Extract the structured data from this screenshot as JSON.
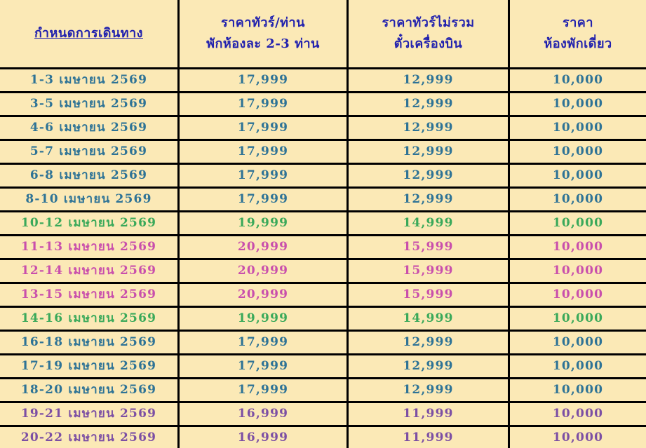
{
  "chart_data": {
    "type": "table",
    "headers": {
      "schedule": "กำหนดการเดินทาง",
      "price_per_person_line1": "ราคาทัวร์/ท่าน",
      "price_per_person_line2": "พักห้องละ 2-3 ท่าน",
      "price_no_flight_line1": "ราคาทัวร์ไม่รวม",
      "price_no_flight_line2": "ตั๋วเครื่องบิน",
      "single_room_line1": "ราคา",
      "single_room_line2": "ห้องพักเดี่ยว"
    },
    "rows": [
      {
        "date": "1-3 เมษายน 2569",
        "price_per_person": "17,999",
        "price_no_flight": "12,999",
        "single_room": "10,000",
        "color": "blue"
      },
      {
        "date": "3-5 เมษายน 2569",
        "price_per_person": "17,999",
        "price_no_flight": "12,999",
        "single_room": "10,000",
        "color": "blue"
      },
      {
        "date": "4-6 เมษายน 2569",
        "price_per_person": "17,999",
        "price_no_flight": "12,999",
        "single_room": "10,000",
        "color": "blue"
      },
      {
        "date": "5-7 เมษายน 2569",
        "price_per_person": "17,999",
        "price_no_flight": "12,999",
        "single_room": "10,000",
        "color": "blue"
      },
      {
        "date": "6-8 เมษายน 2569",
        "price_per_person": "17,999",
        "price_no_flight": "12,999",
        "single_room": "10,000",
        "color": "blue"
      },
      {
        "date": "8-10 เมษายน 2569",
        "price_per_person": "17,999",
        "price_no_flight": "12,999",
        "single_room": "10,000",
        "color": "blue"
      },
      {
        "date": "10-12 เมษายน 2569",
        "price_per_person": "19,999",
        "price_no_flight": "14,999",
        "single_room": "10,000",
        "color": "green"
      },
      {
        "date": "11-13 เมษายน 2569",
        "price_per_person": "20,999",
        "price_no_flight": "15,999",
        "single_room": "10,000",
        "color": "magenta"
      },
      {
        "date": "12-14 เมษายน 2569",
        "price_per_person": "20,999",
        "price_no_flight": "15,999",
        "single_room": "10,000",
        "color": "magenta"
      },
      {
        "date": "13-15 เมษายน 2569",
        "price_per_person": "20,999",
        "price_no_flight": "15,999",
        "single_room": "10,000",
        "color": "magenta"
      },
      {
        "date": "14-16 เมษายน 2569",
        "price_per_person": "19,999",
        "price_no_flight": "14,999",
        "single_room": "10,000",
        "color": "green"
      },
      {
        "date": "16-18 เมษายน 2569",
        "price_per_person": "17,999",
        "price_no_flight": "12,999",
        "single_room": "10,000",
        "color": "blue"
      },
      {
        "date": "17-19 เมษายน 2569",
        "price_per_person": "17,999",
        "price_no_flight": "12,999",
        "single_room": "10,000",
        "color": "blue"
      },
      {
        "date": "18-20 เมษายน 2569",
        "price_per_person": "17,999",
        "price_no_flight": "12,999",
        "single_room": "10,000",
        "color": "blue"
      },
      {
        "date": "19-21 เมษายน 2569",
        "price_per_person": "16,999",
        "price_no_flight": "11,999",
        "single_room": "10,000",
        "color": "purple"
      },
      {
        "date": "20-22 เมษายน 2569",
        "price_per_person": "16,999",
        "price_no_flight": "11,999",
        "single_room": "10,000",
        "color": "purple"
      }
    ]
  },
  "colors": {
    "background": "#FBE9B6",
    "border": "#000000",
    "header_text": "#2222AE",
    "blue": "#2E7396",
    "green": "#3AA95A",
    "magenta": "#C94FAC",
    "purple": "#7C4FA4"
  }
}
